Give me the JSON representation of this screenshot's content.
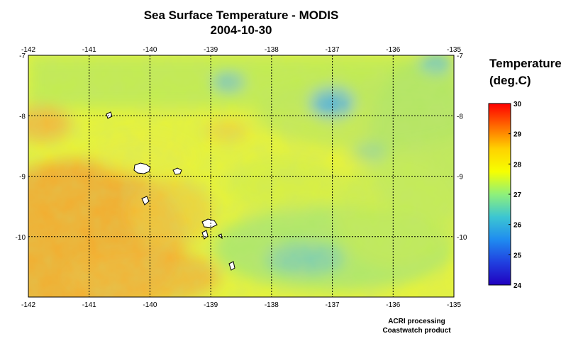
{
  "title": {
    "line1": "Sea Surface Temperature - MODIS",
    "line2": "2004-10-30"
  },
  "map": {
    "lon_ticks": [
      "-142",
      "-141",
      "-140",
      "-139",
      "-138",
      "-137",
      "-136",
      "-135"
    ],
    "lat_ticks": [
      "-7",
      "-8",
      "-9",
      "-10"
    ],
    "lon_range": [
      -142,
      -135
    ],
    "lat_range": [
      -7,
      -11
    ],
    "gridlines": true,
    "land_color": "#ffffff"
  },
  "colorbar": {
    "title_line1": "Temperature",
    "title_line2": "(deg.C)",
    "ticks": [
      "30",
      "29",
      "28",
      "27",
      "26",
      "25",
      "24"
    ],
    "range": [
      24,
      30
    ],
    "colors": [
      "#ff0000",
      "#ff6a00",
      "#ffd200",
      "#f6ff00",
      "#8ff07a",
      "#3cc6d2",
      "#1f8cf0",
      "#2040e0",
      "#2000c0"
    ]
  },
  "credits": {
    "line1": "ACRI processing",
    "line2": "Coastwatch product"
  }
}
